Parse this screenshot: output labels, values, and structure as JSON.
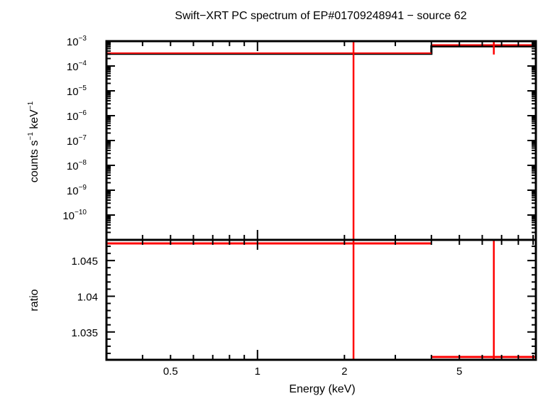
{
  "chart_data": [
    {
      "type": "line",
      "panel": "spectrum",
      "title": "Swift−XRT PC spectrum of EP#01709248941 − source 62",
      "xlabel": "Energy (keV)",
      "ylabel_main": "counts s",
      "ylabel_sup1": "−1",
      "ylabel_mid": " keV",
      "ylabel_sup2": "−1",
      "xscale": "log",
      "yscale": "log",
      "xlim": [
        0.3,
        9.2
      ],
      "ylim": [
        1e-11,
        0.001
      ],
      "ytick_labels": [
        {
          "value": 0.001,
          "base": "10",
          "exp": "−3"
        },
        {
          "value": 0.0001,
          "base": "10",
          "exp": "−4"
        },
        {
          "value": 1e-05,
          "base": "10",
          "exp": "−5"
        },
        {
          "value": 1e-06,
          "base": "10",
          "exp": "−6"
        },
        {
          "value": 1e-07,
          "base": "10",
          "exp": "−7"
        },
        {
          "value": 1e-08,
          "base": "10",
          "exp": "−8"
        },
        {
          "value": 1e-09,
          "base": "10",
          "exp": "−9"
        },
        {
          "value": 1e-10,
          "base": "10",
          "exp": "−10"
        }
      ],
      "data": {
        "color": "#ff0000",
        "points": [
          {
            "xlo": 0.3,
            "xhi": 4.0,
            "x": 2.15,
            "y": 0.00033,
            "ylo": 1e-12,
            "yhi": 0.01
          },
          {
            "xlo": 4.0,
            "xhi": 9.2,
            "x": 6.58,
            "y": 0.0007,
            "ylo": 0.00029,
            "yhi": 0.01
          }
        ]
      },
      "model": {
        "color": "#000000",
        "steps": [
          {
            "xlo": 0.3,
            "xhi": 4.0,
            "y": 0.00031
          },
          {
            "xlo": 4.0,
            "xhi": 9.2,
            "y": 0.00062
          }
        ]
      }
    },
    {
      "type": "line",
      "panel": "ratio",
      "xlabel": "Energy (keV)",
      "ylabel": "ratio",
      "xscale": "log",
      "xlim": [
        0.3,
        9.2
      ],
      "ylim": [
        1.0311,
        1.0479
      ],
      "xtick_labels": [
        {
          "value": 0.5,
          "label": "0.5"
        },
        {
          "value": 1,
          "label": "1"
        },
        {
          "value": 2,
          "label": "2"
        },
        {
          "value": 5,
          "label": "5"
        }
      ],
      "ytick_labels": [
        {
          "value": 1.045,
          "label": "1.045"
        },
        {
          "value": 1.04,
          "label": "1.04"
        },
        {
          "value": 1.035,
          "label": "1.035"
        }
      ],
      "data": {
        "color": "#ff0000",
        "points": [
          {
            "xlo": 0.3,
            "xhi": 4.0,
            "x": 2.15,
            "y": 1.0474,
            "ylo": 1.0,
            "yhi": 1.1
          },
          {
            "xlo": 4.0,
            "xhi": 9.2,
            "x": 6.58,
            "y": 1.0315,
            "ylo": 1.0,
            "yhi": 1.1
          }
        ]
      }
    }
  ]
}
